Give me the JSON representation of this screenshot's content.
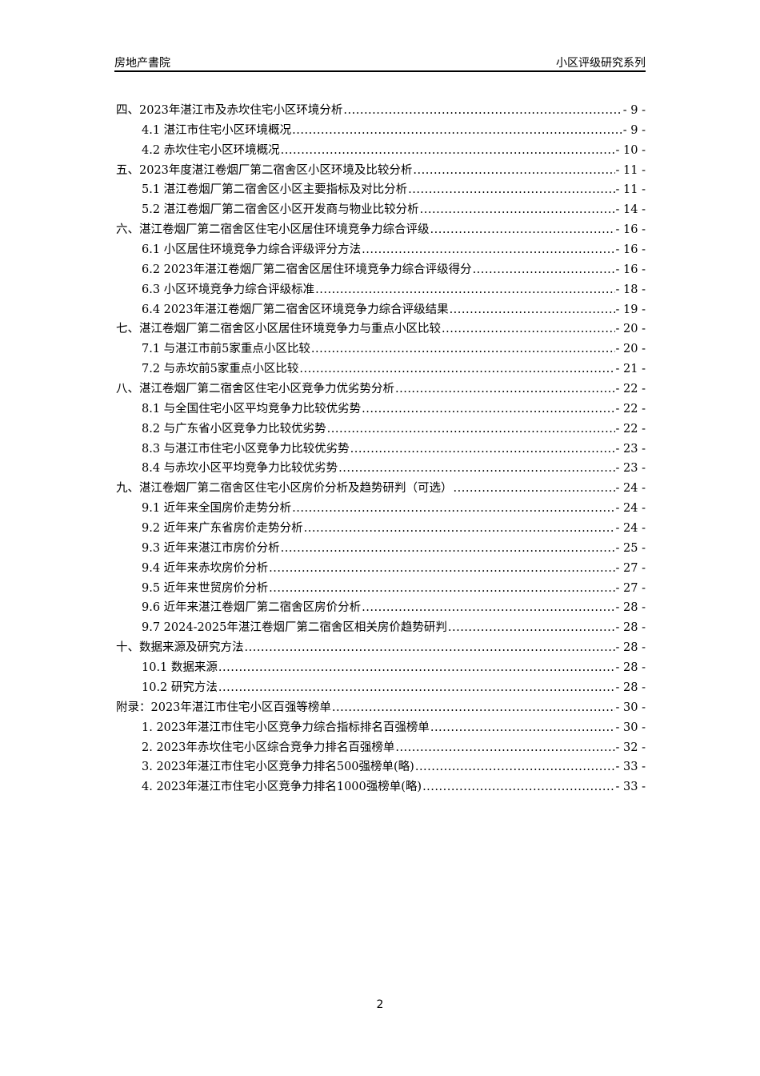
{
  "header": {
    "left": "房地产書院",
    "right": "小区评级研究系列"
  },
  "toc": [
    {
      "level": 1,
      "label": "四、2023年湛江市及赤坎住宅小区环境分析",
      "page": "- 9 -"
    },
    {
      "level": 2,
      "label": "4.1 湛江市住宅小区环境概况",
      "page": "- 9 -"
    },
    {
      "level": 2,
      "label": "4.2 赤坎住宅小区环境概况",
      "page": "- 10 -"
    },
    {
      "level": 1,
      "label": "五、2023年度湛江卷烟厂第二宿舍区小区环境及比较分析",
      "page": "- 11 -"
    },
    {
      "level": 2,
      "label": "5.1 湛江卷烟厂第二宿舍区小区主要指标及对比分析",
      "page": "- 11 -"
    },
    {
      "level": 2,
      "label": "5.2 湛江卷烟厂第二宿舍区小区开发商与物业比较分析",
      "page": "- 14 -"
    },
    {
      "level": 1,
      "label": "六、湛江卷烟厂第二宿舍区住宅小区居住环境竞争力综合评级",
      "page": "- 16 -"
    },
    {
      "level": 2,
      "label": "6.1 小区居住环境竞争力综合评级评分方法",
      "page": "- 16 -"
    },
    {
      "level": 2,
      "label": "6.2 2023年湛江卷烟厂第二宿舍区居住环境竞争力综合评级得分",
      "page": "- 16 -"
    },
    {
      "level": 2,
      "label": "6.3 小区环境竞争力综合评级标准",
      "page": "- 18 -"
    },
    {
      "level": 2,
      "label": "6.4 2023年湛江卷烟厂第二宿舍区环境竞争力综合评级结果",
      "page": "- 19 -"
    },
    {
      "level": 1,
      "label": "七、湛江卷烟厂第二宿舍区小区居住环境竞争力与重点小区比较",
      "page": "- 20 -"
    },
    {
      "level": 2,
      "label": "7.1 与湛江市前5家重点小区比较",
      "page": "- 20 -"
    },
    {
      "level": 2,
      "label": "7.2 与赤坎前5家重点小区比较",
      "page": "- 21 -"
    },
    {
      "level": 1,
      "label": "八、湛江卷烟厂第二宿舍区住宅小区竞争力优劣势分析",
      "page": "- 22 -"
    },
    {
      "level": 2,
      "label": "8.1 与全国住宅小区平均竞争力比较优劣势",
      "page": "- 22 -"
    },
    {
      "level": 2,
      "label": "8.2 与广东省小区竞争力比较优劣势",
      "page": "- 22 -"
    },
    {
      "level": 2,
      "label": "8.3 与湛江市住宅小区竞争力比较优劣势",
      "page": "- 23 -"
    },
    {
      "level": 2,
      "label": "8.4 与赤坎小区平均竞争力比较优劣势",
      "page": "- 23 -"
    },
    {
      "level": 1,
      "label": "九、湛江卷烟厂第二宿舍区住宅小区房价分析及趋势研判（可选）",
      "page": "- 24 -"
    },
    {
      "level": 2,
      "label": "9.1 近年来全国房价走势分析",
      "page": "- 24 -"
    },
    {
      "level": 2,
      "label": "9.2 近年来广东省房价走势分析",
      "page": "- 24 -"
    },
    {
      "level": 2,
      "label": "9.3 近年来湛江市房价分析",
      "page": "- 25 -"
    },
    {
      "level": 2,
      "label": "9.4 近年来赤坎房价分析",
      "page": "- 27 -"
    },
    {
      "level": 2,
      "label": "9.5 近年来世贸房价分析",
      "page": "- 27 -"
    },
    {
      "level": 2,
      "label": "9.6 近年来湛江卷烟厂第二宿舍区房价分析",
      "page": "- 28 -"
    },
    {
      "level": 2,
      "label": "9.7 2024-2025年湛江卷烟厂第二宿舍区相关房价趋势研判",
      "page": "- 28 -"
    },
    {
      "level": 1,
      "label": "十、数据来源及研究方法",
      "page": "- 28 -"
    },
    {
      "level": 2,
      "label": "10.1 数据来源",
      "page": "- 28 -"
    },
    {
      "level": 2,
      "label": "10.2 研究方法",
      "page": "- 28 -"
    },
    {
      "level": 1,
      "label": "附录：2023年湛江市住宅小区百强等榜单",
      "page": "- 30 -"
    },
    {
      "level": 2,
      "label": "1. 2023年湛江市住宅小区竞争力综合指标排名百强榜单",
      "page": "- 30 -"
    },
    {
      "level": 2,
      "label": "2. 2023年赤坎住宅小区综合竞争力排名百强榜单",
      "page": "- 32 -"
    },
    {
      "level": 2,
      "label": "3. 2023年湛江市住宅小区竞争力排名500强榜单(略)",
      "page": "- 33 -"
    },
    {
      "level": 2,
      "label": "4. 2023年湛江市住宅小区竞争力排名1000强榜单(略)",
      "page": "- 33 -"
    }
  ],
  "page_number": "2"
}
